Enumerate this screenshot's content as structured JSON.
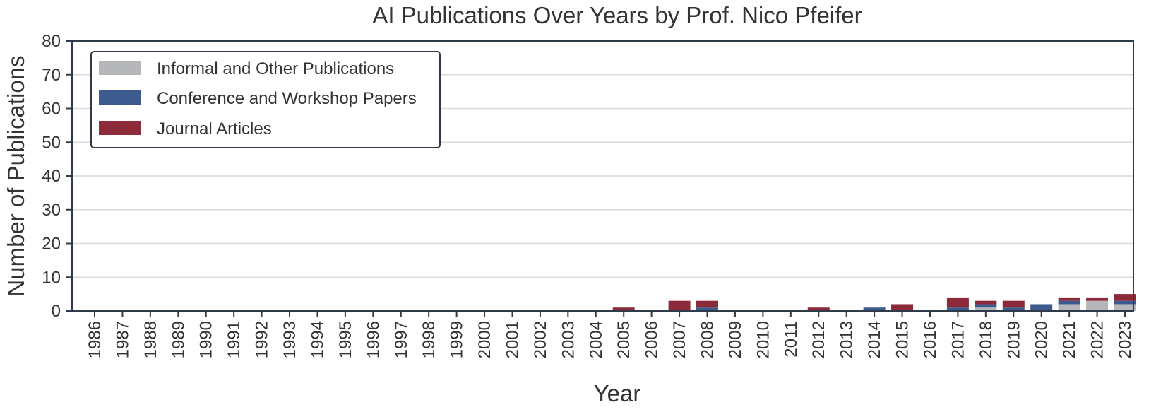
{
  "chart_data": {
    "type": "bar",
    "stacked": true,
    "title": "AI Publications Over Years by Prof. Nico Pfeifer",
    "xlabel": "Year",
    "ylabel": "Number of Publications",
    "ylim": [
      0,
      80
    ],
    "yticks": [
      0,
      10,
      20,
      30,
      40,
      50,
      60,
      70,
      80
    ],
    "grid": "horizontal",
    "legend_position": "top-left",
    "categories": [
      "1986",
      "1987",
      "1988",
      "1989",
      "1990",
      "1991",
      "1992",
      "1993",
      "1994",
      "1995",
      "1996",
      "1997",
      "1998",
      "1999",
      "2000",
      "2001",
      "2002",
      "2003",
      "2004",
      "2005",
      "2006",
      "2007",
      "2008",
      "2009",
      "2010",
      "2011",
      "2012",
      "2013",
      "2014",
      "2015",
      "2016",
      "2017",
      "2018",
      "2019",
      "2020",
      "2021",
      "2022",
      "2023"
    ],
    "series": [
      {
        "name": "Informal and Other Publications",
        "color": "#b5b6ba",
        "values": [
          0,
          0,
          0,
          0,
          0,
          0,
          0,
          0,
          0,
          0,
          0,
          0,
          0,
          0,
          0,
          0,
          0,
          0,
          0,
          0,
          0,
          0,
          0,
          0,
          0,
          0,
          0,
          0,
          0,
          0,
          0,
          0,
          1,
          0,
          0,
          2,
          3,
          2
        ]
      },
      {
        "name": "Conference and Workshop Papers",
        "color": "#3d5a8e",
        "values": [
          0,
          0,
          0,
          0,
          0,
          0,
          0,
          0,
          0,
          0,
          0,
          0,
          0,
          0,
          0,
          0,
          0,
          0,
          0,
          0,
          0,
          0,
          1,
          0,
          0,
          0,
          0,
          0,
          1,
          0,
          0,
          1,
          1,
          1,
          2,
          1,
          0,
          1
        ]
      },
      {
        "name": "Journal Articles",
        "color": "#8c2a3a",
        "values": [
          0,
          0,
          0,
          0,
          0,
          0,
          0,
          0,
          0,
          0,
          0,
          0,
          0,
          0,
          0,
          0,
          0,
          0,
          0,
          1,
          0,
          3,
          2,
          0,
          0,
          0,
          1,
          0,
          0,
          2,
          0,
          3,
          1,
          2,
          0,
          1,
          1,
          2
        ]
      }
    ]
  }
}
